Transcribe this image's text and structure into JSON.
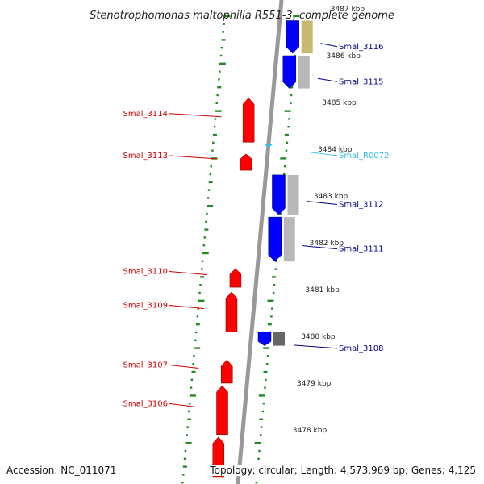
{
  "title": "Stenotrophomonas maltophilia R551-3, complete genome",
  "footer": {
    "accession": "Accession: NC_011071",
    "summary": "Topology: circular; Length: 4,573,969 bp; Genes: 4,125"
  },
  "colors": {
    "forward_gene": "#ff0000",
    "reverse_gene": "#0000ff",
    "reverse_label": "#00008b",
    "forward_label": "#cc0000",
    "rna": "#33bbee",
    "gc_ticks": "#228b22",
    "backbone": "#999999"
  },
  "kbp_ticks": [
    {
      "label": "3487 kbp",
      "kbp": 3487
    },
    {
      "label": "3486 kbp",
      "kbp": 3486
    },
    {
      "label": "3485 kbp",
      "kbp": 3485
    },
    {
      "label": "3484 kbp",
      "kbp": 3484
    },
    {
      "label": "3483 kbp",
      "kbp": 3483
    },
    {
      "label": "3482 kbp",
      "kbp": 3482
    },
    {
      "label": "3481 kbp",
      "kbp": 3481
    },
    {
      "label": "3480 kbp",
      "kbp": 3480
    },
    {
      "label": "3479 kbp",
      "kbp": 3479
    },
    {
      "label": "3478 kbp",
      "kbp": 3478
    }
  ],
  "features": [
    {
      "name": "Smal_3116",
      "strand": "reverse",
      "type": "gene",
      "start_kbp": 3486.05,
      "end_kbp": 3486.75,
      "companion": "#c8b870"
    },
    {
      "name": "Smal_3115",
      "strand": "reverse",
      "type": "gene",
      "start_kbp": 3485.3,
      "end_kbp": 3486.0,
      "companion": "#b8b8b8"
    },
    {
      "name": "Smal_3114",
      "strand": "forward",
      "type": "gene",
      "start_kbp": 3484.15,
      "end_kbp": 3485.1,
      "companion": ""
    },
    {
      "name": "Smal_3113",
      "strand": "forward",
      "type": "gene",
      "start_kbp": 3483.55,
      "end_kbp": 3483.9,
      "companion": ""
    },
    {
      "name": "Smal_R0072",
      "strand": "reverse",
      "type": "rna",
      "start_kbp": 3484.02,
      "end_kbp": 3484.12,
      "companion": ""
    },
    {
      "name": "Smal_3112",
      "strand": "reverse",
      "type": "gene",
      "start_kbp": 3482.6,
      "end_kbp": 3483.45,
      "companion": "#b8b8b8"
    },
    {
      "name": "Smal_3111",
      "strand": "reverse",
      "type": "gene",
      "start_kbp": 3481.6,
      "end_kbp": 3482.55,
      "companion": "#b8b8b8"
    },
    {
      "name": "Smal_3110",
      "strand": "forward",
      "type": "gene",
      "start_kbp": 3481.05,
      "end_kbp": 3481.45,
      "companion": ""
    },
    {
      "name": "Smal_3109",
      "strand": "forward",
      "type": "gene",
      "start_kbp": 3480.1,
      "end_kbp": 3480.95,
      "companion": ""
    },
    {
      "name": "Smal_3108",
      "strand": "reverse",
      "type": "gene",
      "start_kbp": 3479.8,
      "end_kbp": 3480.1,
      "companion": "#666666"
    },
    {
      "name": "Smal_3107",
      "strand": "forward",
      "type": "gene",
      "start_kbp": 3479.0,
      "end_kbp": 3479.5,
      "companion": ""
    },
    {
      "name": "Smal_3106",
      "strand": "forward",
      "type": "gene",
      "start_kbp": 3477.9,
      "end_kbp": 3478.95,
      "companion": ""
    },
    {
      "name": "",
      "strand": "forward",
      "type": "gene",
      "start_kbp": 3477.0,
      "end_kbp": 3477.85,
      "companion": ""
    }
  ]
}
